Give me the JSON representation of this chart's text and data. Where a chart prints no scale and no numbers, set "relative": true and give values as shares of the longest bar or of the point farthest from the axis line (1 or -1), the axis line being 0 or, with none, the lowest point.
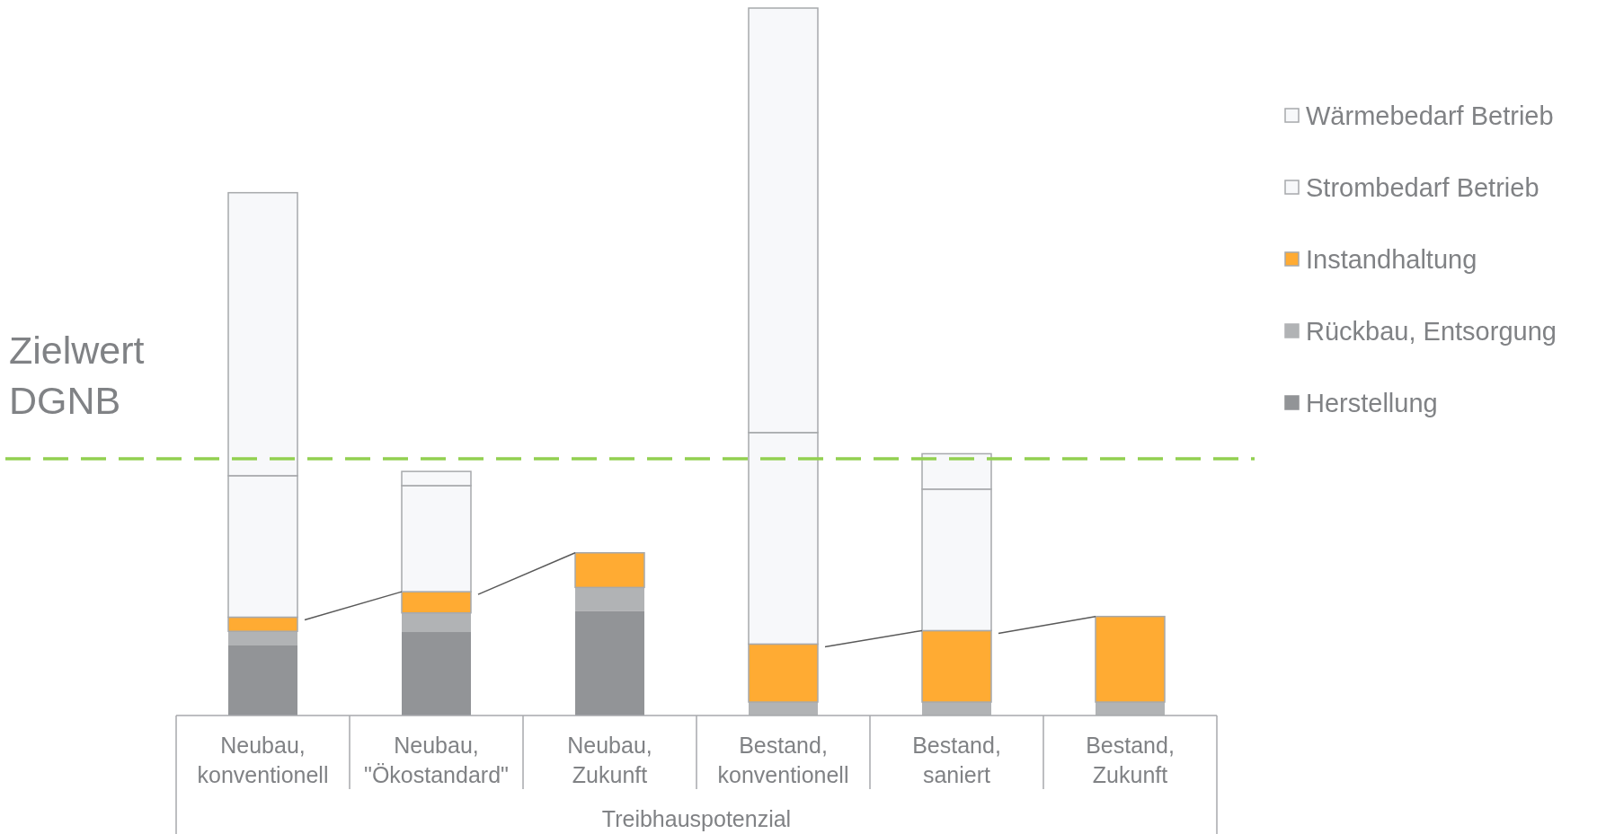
{
  "chart_data": {
    "type": "bar",
    "stacked": true,
    "relative": true,
    "xlabel": "Treibhauspotenzial",
    "categories": [
      "Neubau, konventionell",
      "Neubau, \"Ökostandard\"",
      "Neubau, Zukunft",
      "Bestand, konventionell",
      "Bestand, saniert",
      "Bestand, Zukunft"
    ],
    "series": [
      {
        "name": "Herstellung",
        "color": "#929497",
        "values": [
          0.099,
          0.118,
          0.148,
          0,
          0,
          0
        ]
      },
      {
        "name": "Rückbau, Entsorgung",
        "color": "#b1b3b5",
        "values": [
          0.02,
          0.027,
          0.033,
          0.019,
          0.019,
          0.019
        ]
      },
      {
        "name": "Instandhaltung",
        "color": "#ffab33",
        "values": [
          0.02,
          0.03,
          0.049,
          0.082,
          0.101,
          0.121
        ]
      },
      {
        "name": "Strombedarf Betrieb",
        "color": "#f7f8fa",
        "values": [
          0.2,
          0.15,
          0,
          0.299,
          0.2,
          0
        ]
      },
      {
        "name": "Wärmebedarf Betrieb",
        "color": "#f7f8fa",
        "values": [
          0.4,
          0.02,
          0,
          0.6,
          0.05,
          0
        ]
      }
    ],
    "ref_lines": [
      {
        "axis": "y",
        "value": 0.363,
        "label": "Zielwert DGNB",
        "color": "#92d050",
        "line_style": "dashed"
      }
    ],
    "legend": "right",
    "grid": false
  }
}
